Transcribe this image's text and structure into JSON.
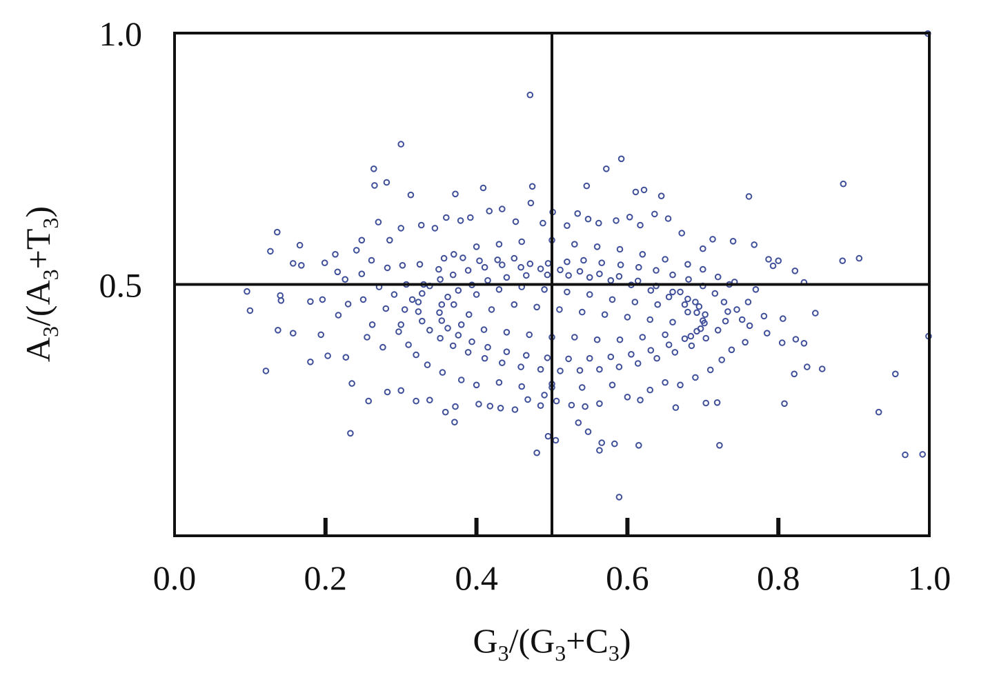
{
  "chart_data": {
    "type": "scatter",
    "title": "",
    "xlabel": {
      "base": "G",
      "sub": "3",
      "mid": "/(G",
      "sub2": "3",
      "tail": "+C",
      "sub3": "3",
      "end": ")"
    },
    "ylabel": {
      "base": "A",
      "sub": "3",
      "mid": "/(A",
      "sub2": "3",
      "tail": "+T",
      "sub3": "3",
      "end": ")"
    },
    "xlim": [
      0,
      1
    ],
    "ylim": [
      0,
      1
    ],
    "x_ticks": [
      "0.0",
      "0.2",
      "0.4",
      "0.6",
      "0.8",
      "1.0"
    ],
    "y_ticks": [
      "0.5",
      "1.0"
    ],
    "reference_lines": {
      "x": 0.5,
      "y": 0.5
    },
    "marker": "open-circle",
    "point_color": "#3f4f99",
    "grid": false,
    "legend": "none",
    "points": [
      [
        0.471,
        0.877
      ],
      [
        0.3,
        0.779
      ],
      [
        0.264,
        0.73
      ],
      [
        0.281,
        0.703
      ],
      [
        0.313,
        0.678
      ],
      [
        0.265,
        0.697
      ],
      [
        0.372,
        0.68
      ],
      [
        0.409,
        0.692
      ],
      [
        0.472,
        0.662
      ],
      [
        0.474,
        0.695
      ],
      [
        0.546,
        0.696
      ],
      [
        0.572,
        0.73
      ],
      [
        0.592,
        0.75
      ],
      [
        0.611,
        0.684
      ],
      [
        0.622,
        0.688
      ],
      [
        0.645,
        0.676
      ],
      [
        0.761,
        0.675
      ],
      [
        0.886,
        0.7
      ],
      [
        0.136,
        0.604
      ],
      [
        0.127,
        0.566
      ],
      [
        0.166,
        0.578
      ],
      [
        0.157,
        0.542
      ],
      [
        0.168,
        0.538
      ],
      [
        0.199,
        0.543
      ],
      [
        0.241,
        0.568
      ],
      [
        0.216,
        0.525
      ],
      [
        0.213,
        0.56
      ],
      [
        0.248,
        0.588
      ],
      [
        0.27,
        0.624
      ],
      [
        0.285,
        0.588
      ],
      [
        0.3,
        0.612
      ],
      [
        0.327,
        0.618
      ],
      [
        0.345,
        0.612
      ],
      [
        0.36,
        0.633
      ],
      [
        0.379,
        0.627
      ],
      [
        0.392,
        0.633
      ],
      [
        0.417,
        0.646
      ],
      [
        0.434,
        0.65
      ],
      [
        0.452,
        0.625
      ],
      [
        0.488,
        0.622
      ],
      [
        0.501,
        0.644
      ],
      [
        0.52,
        0.617
      ],
      [
        0.534,
        0.641
      ],
      [
        0.548,
        0.63
      ],
      [
        0.562,
        0.622
      ],
      [
        0.585,
        0.627
      ],
      [
        0.603,
        0.634
      ],
      [
        0.617,
        0.618
      ],
      [
        0.636,
        0.64
      ],
      [
        0.654,
        0.631
      ],
      [
        0.672,
        0.602
      ],
      [
        0.713,
        0.59
      ],
      [
        0.7,
        0.571
      ],
      [
        0.74,
        0.586
      ],
      [
        0.768,
        0.579
      ],
      [
        0.787,
        0.55
      ],
      [
        0.793,
        0.537
      ],
      [
        0.8,
        0.547
      ],
      [
        0.822,
        0.527
      ],
      [
        0.834,
        0.504
      ],
      [
        0.907,
        0.552
      ],
      [
        0.849,
        0.443
      ],
      [
        0.806,
        0.432
      ],
      [
        0.785,
        0.403
      ],
      [
        0.762,
        0.418
      ],
      [
        0.781,
        0.437
      ],
      [
        0.805,
        0.384
      ],
      [
        0.823,
        0.391
      ],
      [
        0.834,
        0.383
      ],
      [
        0.821,
        0.322
      ],
      [
        0.838,
        0.336
      ],
      [
        0.858,
        0.332
      ],
      [
        0.808,
        0.263
      ],
      [
        0.719,
        0.265
      ],
      [
        0.704,
        0.264
      ],
      [
        0.664,
        0.255
      ],
      [
        0.617,
        0.27
      ],
      [
        0.6,
        0.276
      ],
      [
        0.563,
        0.263
      ],
      [
        0.544,
        0.257
      ],
      [
        0.526,
        0.26
      ],
      [
        0.506,
        0.268
      ],
      [
        0.485,
        0.259
      ],
      [
        0.468,
        0.271
      ],
      [
        0.451,
        0.251
      ],
      [
        0.432,
        0.254
      ],
      [
        0.418,
        0.258
      ],
      [
        0.403,
        0.262
      ],
      [
        0.371,
        0.226
      ],
      [
        0.372,
        0.257
      ],
      [
        0.359,
        0.246
      ],
      [
        0.338,
        0.27
      ],
      [
        0.32,
        0.268
      ],
      [
        0.3,
        0.289
      ],
      [
        0.282,
        0.286
      ],
      [
        0.257,
        0.268
      ],
      [
        0.233,
        0.204
      ],
      [
        0.235,
        0.303
      ],
      [
        0.227,
        0.355
      ],
      [
        0.203,
        0.358
      ],
      [
        0.18,
        0.346
      ],
      [
        0.121,
        0.328
      ],
      [
        0.194,
        0.4
      ],
      [
        0.157,
        0.403
      ],
      [
        0.137,
        0.409
      ],
      [
        0.1,
        0.448
      ],
      [
        0.096,
        0.486
      ],
      [
        0.14,
        0.478
      ],
      [
        0.141,
        0.468
      ],
      [
        0.18,
        0.466
      ],
      [
        0.217,
        0.439
      ],
      [
        0.23,
        0.461
      ],
      [
        0.196,
        0.47
      ],
      [
        0.226,
        0.51
      ],
      [
        0.248,
        0.521
      ],
      [
        0.261,
        0.548
      ],
      [
        0.282,
        0.533
      ],
      [
        0.302,
        0.538
      ],
      [
        0.325,
        0.54
      ],
      [
        0.357,
        0.552
      ],
      [
        0.382,
        0.553
      ],
      [
        0.404,
        0.547
      ],
      [
        0.428,
        0.549
      ],
      [
        0.45,
        0.552
      ],
      [
        0.471,
        0.541
      ],
      [
        0.495,
        0.542
      ],
      [
        0.52,
        0.545
      ],
      [
        0.542,
        0.548
      ],
      [
        0.566,
        0.543
      ],
      [
        0.591,
        0.539
      ],
      [
        0.615,
        0.534
      ],
      [
        0.638,
        0.528
      ],
      [
        0.66,
        0.519
      ],
      [
        0.681,
        0.51
      ],
      [
        0.7,
        0.497
      ],
      [
        0.716,
        0.482
      ],
      [
        0.728,
        0.465
      ],
      [
        0.733,
        0.446
      ],
      [
        0.73,
        0.427
      ],
      [
        0.72,
        0.409
      ],
      [
        0.704,
        0.393
      ],
      [
        0.685,
        0.378
      ],
      [
        0.663,
        0.365
      ],
      [
        0.639,
        0.353
      ],
      [
        0.614,
        0.343
      ],
      [
        0.589,
        0.336
      ],
      [
        0.563,
        0.331
      ],
      [
        0.537,
        0.329
      ],
      [
        0.511,
        0.328
      ],
      [
        0.485,
        0.331
      ],
      [
        0.459,
        0.336
      ],
      [
        0.434,
        0.344
      ],
      [
        0.411,
        0.353
      ],
      [
        0.389,
        0.365
      ],
      [
        0.369,
        0.378
      ],
      [
        0.352,
        0.393
      ],
      [
        0.338,
        0.409
      ],
      [
        0.328,
        0.427
      ],
      [
        0.323,
        0.446
      ],
      [
        0.323,
        0.465
      ],
      [
        0.328,
        0.482
      ],
      [
        0.338,
        0.497
      ],
      [
        0.352,
        0.51
      ],
      [
        0.369,
        0.519
      ],
      [
        0.389,
        0.528
      ],
      [
        0.411,
        0.534
      ],
      [
        0.434,
        0.539
      ],
      [
        0.459,
        0.534
      ],
      [
        0.485,
        0.531
      ],
      [
        0.511,
        0.529
      ],
      [
        0.537,
        0.526
      ],
      [
        0.563,
        0.521
      ],
      [
        0.589,
        0.516
      ],
      [
        0.614,
        0.507
      ],
      [
        0.638,
        0.497
      ],
      [
        0.66,
        0.485
      ],
      [
        0.68,
        0.471
      ],
      [
        0.695,
        0.456
      ],
      [
        0.703,
        0.44
      ],
      [
        0.702,
        0.423
      ],
      [
        0.692,
        0.407
      ],
      [
        0.676,
        0.392
      ],
      [
        0.655,
        0.38
      ],
      [
        0.631,
        0.369
      ],
      [
        0.605,
        0.361
      ],
      [
        0.578,
        0.356
      ],
      [
        0.55,
        0.353
      ],
      [
        0.522,
        0.352
      ],
      [
        0.494,
        0.354
      ],
      [
        0.466,
        0.359
      ],
      [
        0.44,
        0.366
      ],
      [
        0.415,
        0.375
      ],
      [
        0.394,
        0.386
      ],
      [
        0.376,
        0.399
      ],
      [
        0.362,
        0.413
      ],
      [
        0.354,
        0.428
      ],
      [
        0.351,
        0.444
      ],
      [
        0.354,
        0.46
      ],
      [
        0.362,
        0.475
      ],
      [
        0.376,
        0.488
      ],
      [
        0.394,
        0.499
      ],
      [
        0.415,
        0.508
      ],
      [
        0.44,
        0.514
      ],
      [
        0.466,
        0.518
      ],
      [
        0.494,
        0.519
      ],
      [
        0.522,
        0.518
      ],
      [
        0.55,
        0.514
      ],
      [
        0.578,
        0.508
      ],
      [
        0.605,
        0.499
      ],
      [
        0.631,
        0.488
      ],
      [
        0.655,
        0.475
      ],
      [
        0.676,
        0.46
      ],
      [
        0.692,
        0.444
      ],
      [
        0.7,
        0.428
      ],
      [
        0.697,
        0.412
      ],
      [
        0.684,
        0.397
      ],
      [
        0.28,
        0.452
      ],
      [
        0.262,
        0.42
      ],
      [
        0.255,
        0.395
      ],
      [
        0.276,
        0.375
      ],
      [
        0.297,
        0.406
      ],
      [
        0.291,
        0.48
      ],
      [
        0.307,
        0.5
      ],
      [
        0.271,
        0.495
      ],
      [
        0.25,
        0.47
      ],
      [
        0.745,
        0.45
      ],
      [
        0.76,
        0.465
      ],
      [
        0.752,
        0.43
      ],
      [
        0.77,
        0.49
      ],
      [
        0.742,
        0.505
      ],
      [
        0.756,
        0.385
      ],
      [
        0.738,
        0.37
      ],
      [
        0.725,
        0.35
      ],
      [
        0.71,
        0.33
      ],
      [
        0.69,
        0.315
      ],
      [
        0.67,
        0.3
      ],
      [
        0.65,
        0.305
      ],
      [
        0.63,
        0.29
      ],
      [
        0.58,
        0.3
      ],
      [
        0.54,
        0.295
      ],
      [
        0.5,
        0.302
      ],
      [
        0.46,
        0.297
      ],
      [
        0.43,
        0.305
      ],
      [
        0.4,
        0.3
      ],
      [
        0.38,
        0.31
      ],
      [
        0.355,
        0.325
      ],
      [
        0.335,
        0.34
      ],
      [
        0.32,
        0.36
      ],
      [
        0.31,
        0.38
      ],
      [
        0.3,
        0.42
      ],
      [
        0.305,
        0.45
      ],
      [
        0.315,
        0.47
      ],
      [
        0.33,
        0.5
      ],
      [
        0.35,
        0.53
      ],
      [
        0.37,
        0.56
      ],
      [
        0.4,
        0.575
      ],
      [
        0.43,
        0.58
      ],
      [
        0.46,
        0.585
      ],
      [
        0.5,
        0.588
      ],
      [
        0.53,
        0.58
      ],
      [
        0.56,
        0.575
      ],
      [
        0.59,
        0.57
      ],
      [
        0.62,
        0.56
      ],
      [
        0.65,
        0.55
      ],
      [
        0.68,
        0.54
      ],
      [
        0.7,
        0.53
      ],
      [
        0.72,
        0.515
      ],
      [
        0.735,
        0.5
      ],
      [
        0.5,
        0.295
      ],
      [
        0.49,
        0.28
      ],
      [
        0.505,
        0.19
      ],
      [
        0.495,
        0.198
      ],
      [
        0.548,
        0.207
      ],
      [
        0.566,
        0.185
      ],
      [
        0.583,
        0.183
      ],
      [
        0.563,
        0.17
      ],
      [
        0.48,
        0.165
      ],
      [
        0.615,
        0.18
      ],
      [
        0.535,
        0.225
      ],
      [
        0.722,
        0.18
      ],
      [
        0.589,
        0.077
      ],
      [
        0.933,
        0.246
      ],
      [
        0.955,
        0.322
      ],
      [
        0.968,
        0.161
      ],
      [
        0.991,
        0.162
      ],
      [
        0.999,
        0.397
      ],
      [
        0.998,
        0.999
      ],
      [
        0.885,
        0.547
      ],
      [
        0.42,
        0.45
      ],
      [
        0.45,
        0.46
      ],
      [
        0.48,
        0.455
      ],
      [
        0.51,
        0.45
      ],
      [
        0.54,
        0.445
      ],
      [
        0.57,
        0.44
      ],
      [
        0.6,
        0.435
      ],
      [
        0.63,
        0.43
      ],
      [
        0.66,
        0.425
      ],
      [
        0.4,
        0.48
      ],
      [
        0.43,
        0.49
      ],
      [
        0.46,
        0.495
      ],
      [
        0.49,
        0.49
      ],
      [
        0.52,
        0.485
      ],
      [
        0.55,
        0.48
      ],
      [
        0.58,
        0.47
      ],
      [
        0.61,
        0.465
      ],
      [
        0.64,
        0.46
      ],
      [
        0.41,
        0.41
      ],
      [
        0.44,
        0.405
      ],
      [
        0.47,
        0.4
      ],
      [
        0.5,
        0.395
      ],
      [
        0.53,
        0.395
      ],
      [
        0.56,
        0.39
      ],
      [
        0.59,
        0.39
      ],
      [
        0.62,
        0.395
      ],
      [
        0.65,
        0.4
      ],
      [
        0.39,
        0.44
      ],
      [
        0.38,
        0.42
      ],
      [
        0.37,
        0.46
      ],
      [
        0.68,
        0.445
      ],
      [
        0.69,
        0.465
      ],
      [
        0.67,
        0.485
      ]
    ]
  }
}
